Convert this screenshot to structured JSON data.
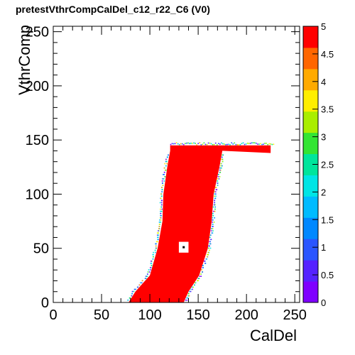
{
  "chart_data": {
    "type": "heatmap",
    "title": "pretestVthrCompCalDel_c12_r22_C6 (V0)",
    "xlabel": "CalDel",
    "ylabel": "VthrComp",
    "xlim": [
      0,
      255
    ],
    "ylim": [
      0,
      255
    ],
    "x_ticks": [
      0,
      50,
      100,
      150,
      200,
      250
    ],
    "y_ticks": [
      0,
      50,
      100,
      150,
      200,
      250
    ],
    "colorbar": {
      "range": [
        0,
        5
      ],
      "ticks": [
        0,
        0.5,
        1,
        1.5,
        2,
        2.5,
        3,
        3.5,
        4,
        4.5,
        5
      ],
      "tick_labels": [
        "0",
        "0.5",
        "1",
        "1.5",
        "2",
        "2.5",
        "3",
        "3.5",
        "4",
        "4.5",
        "5"
      ]
    },
    "grid": false,
    "legend": "colorbar-right",
    "region": {
      "value": 5,
      "color": "#ff0000",
      "left_edge": [
        [
          0,
          78
        ],
        [
          10,
          85
        ],
        [
          25,
          100
        ],
        [
          50,
          108
        ],
        [
          75,
          113
        ],
        [
          100,
          114
        ],
        [
          125,
          118
        ],
        [
          140,
          121
        ]
      ],
      "right_edge": [
        [
          0,
          135
        ],
        [
          10,
          140
        ],
        [
          25,
          151
        ],
        [
          50,
          160
        ],
        [
          75,
          164
        ],
        [
          100,
          166
        ],
        [
          125,
          172
        ],
        [
          140,
          175
        ]
      ],
      "top_band_y": [
        138,
        145
      ],
      "top_band_x": [
        121,
        225
      ],
      "hole": {
        "x": 135,
        "y": 51,
        "size": 10
      }
    },
    "colors": {
      "palette": [
        "#7f00ff",
        "#5522ff",
        "#2a55ff",
        "#0088ff",
        "#00bbff",
        "#00e5e5",
        "#00e59c",
        "#33e533",
        "#aaee00",
        "#ffee00",
        "#ffaa00",
        "#ff6600",
        "#ff0000"
      ]
    }
  }
}
